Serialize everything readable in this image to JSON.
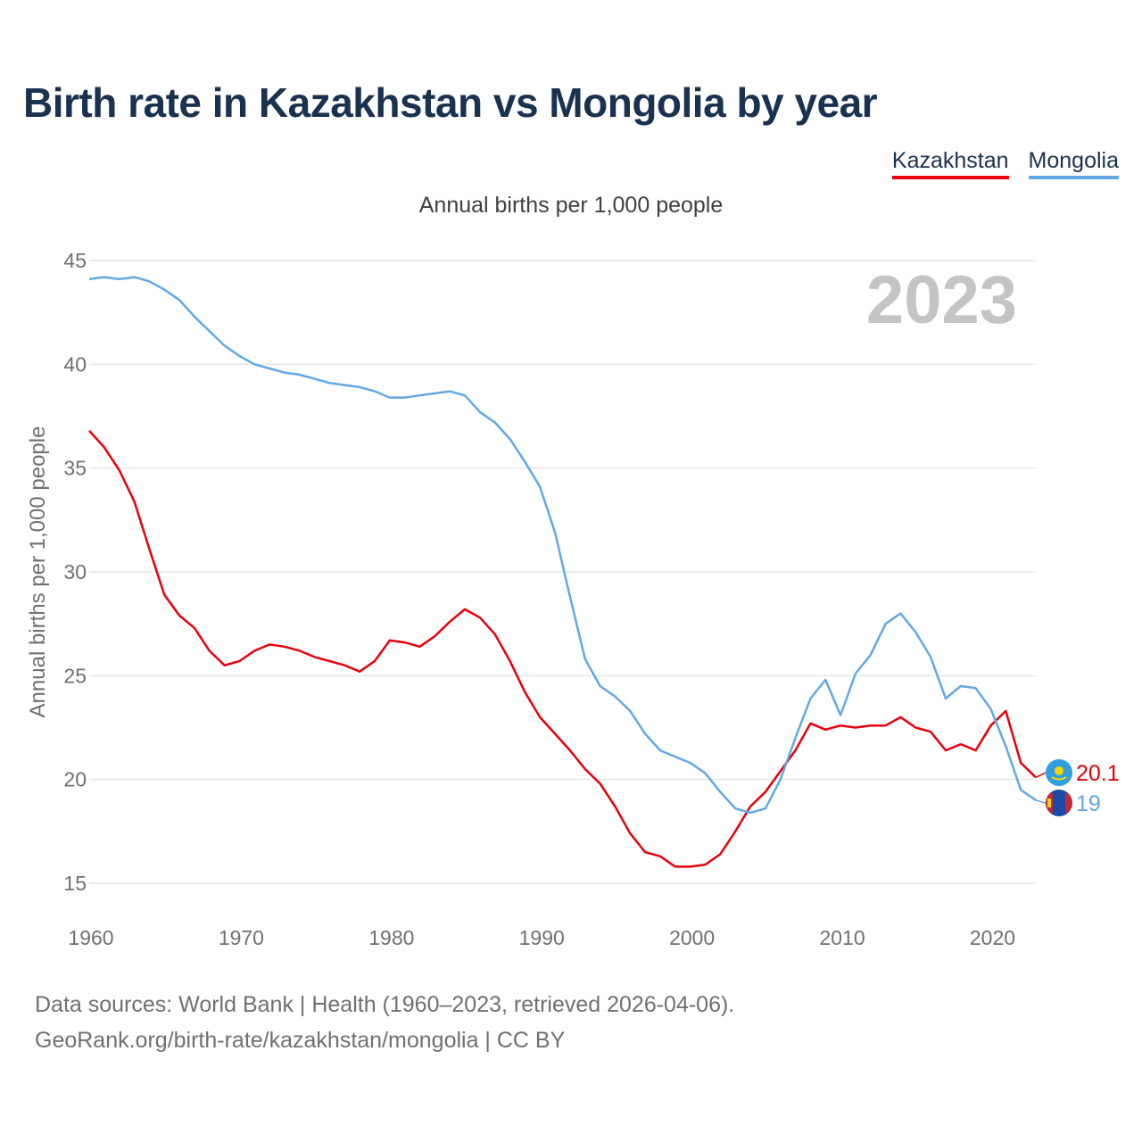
{
  "chart_data": {
    "type": "line",
    "title": "Birth rate in Kazakhstan vs Mongolia by year",
    "subtitle": "Annual births per 1,000 people",
    "ylabel": "Annual births per 1,000 people",
    "xlabel": "",
    "year_watermark": "2023",
    "xlim": [
      1960,
      2023
    ],
    "ylim": [
      15,
      45
    ],
    "x_ticks": [
      "1960",
      "1970",
      "1980",
      "1990",
      "2000",
      "2010",
      "2020"
    ],
    "y_ticks": [
      "15",
      "20",
      "25",
      "30",
      "35",
      "40",
      "45"
    ],
    "x": [
      1960,
      1961,
      1962,
      1963,
      1964,
      1965,
      1966,
      1967,
      1968,
      1969,
      1970,
      1971,
      1972,
      1973,
      1974,
      1975,
      1976,
      1977,
      1978,
      1979,
      1980,
      1981,
      1982,
      1983,
      1984,
      1985,
      1986,
      1987,
      1988,
      1989,
      1990,
      1991,
      1992,
      1993,
      1994,
      1995,
      1996,
      1997,
      1998,
      1999,
      2000,
      2001,
      2002,
      2003,
      2004,
      2005,
      2006,
      2007,
      2008,
      2009,
      2010,
      2011,
      2012,
      2013,
      2014,
      2015,
      2016,
      2017,
      2018,
      2019,
      2020,
      2021,
      2022,
      2023
    ],
    "series": [
      {
        "name": "Kazakhstan",
        "color": "#e8000b",
        "end_label": "20.1",
        "values": [
          36.8,
          36.0,
          34.9,
          33.4,
          31.1,
          28.9,
          27.9,
          27.3,
          26.2,
          25.5,
          25.7,
          26.2,
          26.5,
          26.4,
          26.2,
          25.9,
          25.7,
          25.5,
          25.2,
          25.7,
          26.7,
          26.6,
          26.4,
          26.9,
          27.6,
          28.2,
          27.8,
          27.0,
          25.7,
          24.2,
          23.0,
          22.2,
          21.4,
          20.5,
          19.8,
          18.7,
          17.4,
          16.5,
          16.3,
          15.8,
          15.8,
          15.9,
          16.4,
          17.5,
          18.7,
          19.4,
          20.4,
          21.4,
          22.7,
          22.4,
          22.6,
          22.5,
          22.6,
          22.6,
          23.0,
          22.5,
          22.3,
          21.4,
          21.7,
          21.4,
          22.6,
          23.3,
          20.8,
          20.1
        ]
      },
      {
        "name": "Mongolia",
        "color": "#62a8e6",
        "end_label": "19",
        "values": [
          44.1,
          44.2,
          44.1,
          44.2,
          44.0,
          43.6,
          43.1,
          42.3,
          41.6,
          40.9,
          40.4,
          40.0,
          39.8,
          39.6,
          39.5,
          39.3,
          39.1,
          39.0,
          38.9,
          38.7,
          38.4,
          38.4,
          38.5,
          38.6,
          38.7,
          38.5,
          37.7,
          37.2,
          36.4,
          35.3,
          34.1,
          31.9,
          28.8,
          25.8,
          24.5,
          24.0,
          23.3,
          22.2,
          21.4,
          21.1,
          20.8,
          20.3,
          19.4,
          18.6,
          18.4,
          18.6,
          20.0,
          22.0,
          23.9,
          24.8,
          23.1,
          25.1,
          26.0,
          27.5,
          28.0,
          27.1,
          25.9,
          23.9,
          24.5,
          24.4,
          23.4,
          21.6,
          19.5,
          19.0
        ]
      }
    ],
    "legend_position": "top-right",
    "grid": true
  },
  "footer": {
    "line1": "Data sources: World Bank | Health (1960–2023, retrieved 2026-04-06).",
    "line2": "GeoRank.org/birth-rate/kazakhstan/mongolia | CC BY"
  }
}
